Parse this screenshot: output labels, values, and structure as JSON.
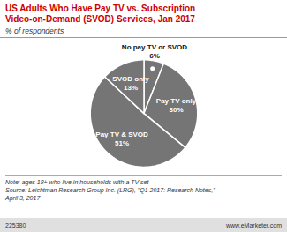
{
  "chart_data": {
    "type": "pie",
    "title": "US Adults Who Have Pay TV vs. Subscription\nVideo-on-Demand (SVOD) Services, Jan 2017",
    "subtitle": "% of respondents",
    "categories": [
      "No pay TV or SVOD",
      "Pay TV only",
      "Pay TV & SVOD",
      "SVOD only"
    ],
    "values": [
      6,
      30,
      51,
      13
    ],
    "value_labels": [
      "6%",
      "30%",
      "51%",
      "13%"
    ],
    "data_labels": true,
    "color": "#757575",
    "note": "Note: ages 18+ who live in households with a TV set\nSource: Leichtman Research Group Inc. (LRG), \"Q1 2017: Research Notes,\"\nApril 3, 2017",
    "footer_left": "225380",
    "footer_right": "www.eMarketer.com"
  }
}
